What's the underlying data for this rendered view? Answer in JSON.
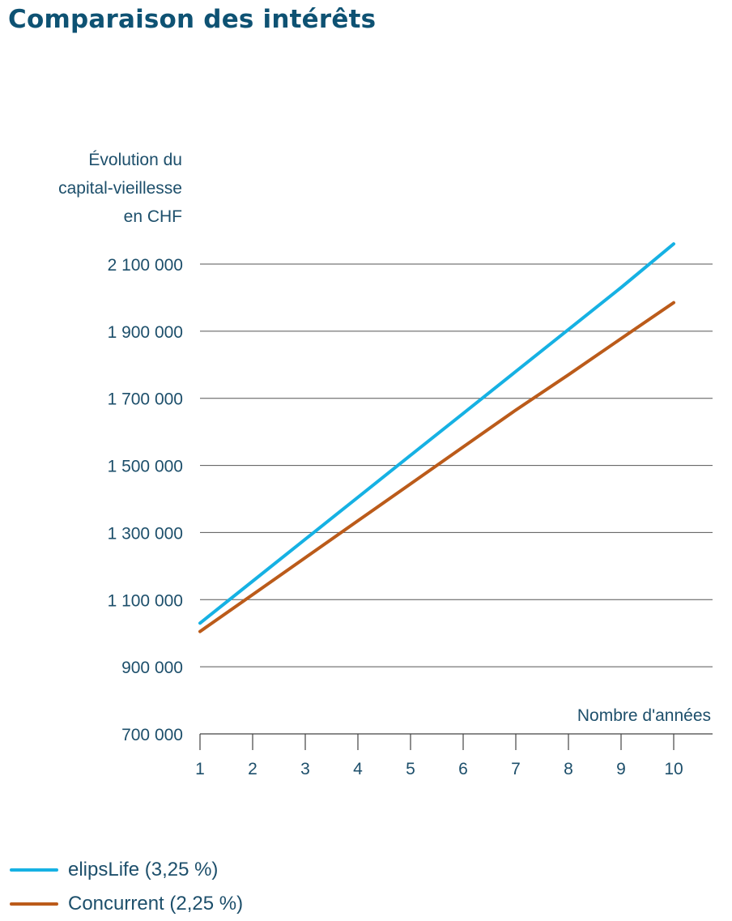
{
  "title": "Comparaison des intérêts",
  "chart_data": {
    "type": "line",
    "ylabel_lines": [
      "Évolution du",
      "capital-vieillesse",
      "en CHF"
    ],
    "xlabel": "Nombre d'années",
    "x": [
      1,
      2,
      3,
      4,
      5,
      6,
      7,
      8,
      9,
      10
    ],
    "x_tick_labels": [
      "1",
      "2",
      "3",
      "4",
      "5",
      "6",
      "7",
      "8",
      "9",
      "10"
    ],
    "y_ticks": [
      700000,
      900000,
      1100000,
      1300000,
      1500000,
      1700000,
      1900000,
      2100000
    ],
    "y_tick_labels": [
      "700 000",
      "900 000",
      "1 100 000",
      "1 300 000",
      "1 500 000",
      "1 700 000",
      "1 900 000",
      "2 100 000"
    ],
    "ylim": [
      700000,
      2100000
    ],
    "grid": "horizontal",
    "legend_position": "bottom-left",
    "series": [
      {
        "name": "elipsLife (3,25 %)",
        "color": "#16b1e3",
        "values": [
          1030000,
          1155000,
          1280000,
          1405000,
          1530000,
          1655000,
          1780000,
          1905000,
          2030000,
          2160000
        ]
      },
      {
        "name": "Concurrent (2,25 %)",
        "color": "#bb5b1a",
        "values": [
          1005000,
          1115000,
          1225000,
          1335000,
          1445000,
          1555000,
          1665000,
          1770000,
          1878000,
          1985000
        ]
      }
    ],
    "axis_color": "#444444",
    "grid_color": "#555555"
  }
}
